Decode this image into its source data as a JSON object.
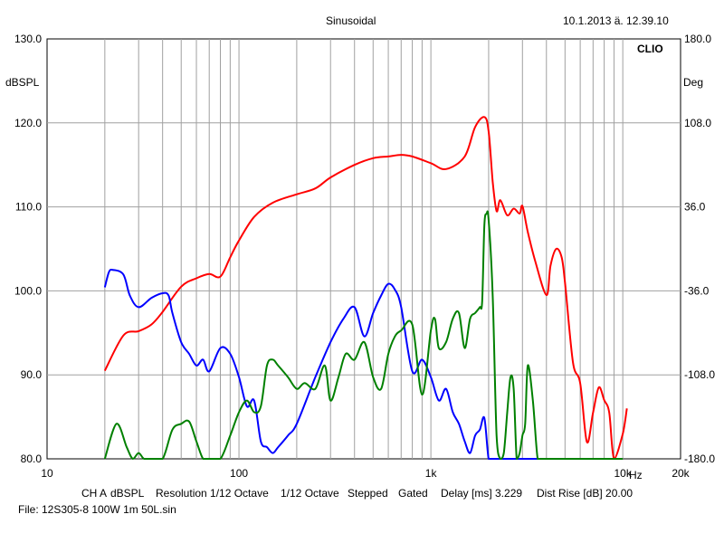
{
  "header": {
    "title": "Sinusoidal",
    "timestamp": "10.1.2013 ä. 12.39.10",
    "brand": "CLIO"
  },
  "footer": {
    "settings": [
      "CH A",
      "dBSPL",
      "Resolution 1/12 Octave",
      "1/12 Octave",
      "Stepped",
      "Gated",
      "Delay [ms] 3.229",
      "Dist Rise [dB] 20.00"
    ],
    "file": "File: 12S305-8 100W 1m 50L.sin"
  },
  "colors": {
    "grid": "#a0a0a0",
    "spl": "#ff0000",
    "phase_blue": "#0000ff",
    "phase_green": "#008000"
  },
  "chart_data": {
    "type": "line",
    "xscale": "log",
    "xlim": [
      10,
      20000
    ],
    "x_tick_labels": [
      {
        "value": 10,
        "label": "10"
      },
      {
        "value": 100,
        "label": "100"
      },
      {
        "value": 1000,
        "label": "1k"
      },
      {
        "value": 10000,
        "label": "10k"
      },
      {
        "value": 20000,
        "label": "20k"
      }
    ],
    "x_unit": "Hz",
    "ylabel_left": "dBSPL",
    "ylim_left": [
      80,
      130
    ],
    "y_ticks_left": [
      "80.0",
      "90.0",
      "100.0",
      "110.0",
      "120.0",
      "130.0"
    ],
    "ylabel_right": "Deg",
    "ylim_right": [
      -180,
      180
    ],
    "y_ticks_right": [
      "-180.0",
      "-108.0",
      "-36.0",
      "36.0",
      "108.0",
      "180.0"
    ],
    "grid": true,
    "series": [
      {
        "axis": "left",
        "color": "#ff0000",
        "x": [
          20,
          25,
          30,
          35,
          40,
          50,
          60,
          70,
          80,
          90,
          100,
          120,
          150,
          200,
          250,
          300,
          400,
          500,
          600,
          700,
          800,
          1000,
          1200,
          1500,
          1700,
          1900,
          2000,
          2100,
          2200,
          2300,
          2500,
          2700,
          2900,
          3000,
          3200,
          3500,
          4000,
          4200,
          4500,
          4800,
          5000,
          5500,
          6000,
          6500,
          7000,
          7500,
          8000,
          8500,
          9000,
          10000,
          10500
        ],
        "values": [
          90.5,
          94.7,
          95.2,
          96.0,
          97.5,
          100.5,
          101.5,
          102.0,
          101.7,
          104.0,
          106.0,
          108.8,
          110.5,
          111.5,
          112.2,
          113.5,
          115.0,
          115.8,
          116.0,
          116.2,
          116.0,
          115.2,
          114.5,
          116.0,
          119.5,
          120.7,
          119.0,
          113.0,
          109.5,
          110.8,
          109.0,
          109.8,
          109.2,
          110.1,
          107.0,
          103.5,
          99.5,
          103.0,
          105.0,
          104.0,
          101.0,
          91.5,
          89.0,
          82.0,
          85.5,
          88.5,
          87.0,
          85.5,
          80.0,
          83.0,
          86.0
        ]
      },
      {
        "axis": "right",
        "color": "#0000ff",
        "x": [
          20,
          21,
          22,
          25,
          27,
          30,
          35,
          40,
          43,
          45,
          50,
          55,
          60,
          65,
          70,
          80,
          90,
          100,
          110,
          120,
          130,
          140,
          150,
          160,
          180,
          200,
          250,
          300,
          350,
          400,
          450,
          500,
          550,
          600,
          650,
          700,
          800,
          900,
          1000,
          1100,
          1200,
          1300,
          1400,
          1500,
          1600,
          1700,
          1800,
          1900,
          2000,
          2100,
          2500,
          3000,
          4000,
          5000,
          7000,
          9000
        ],
        "values": [
          -33,
          -20,
          -18,
          -22,
          -40,
          -50,
          -42,
          -38,
          -40,
          -55,
          -80,
          -90,
          -100,
          -95,
          -105,
          -85,
          -90,
          -110,
          -135,
          -130,
          -165,
          -170,
          -175,
          -170,
          -160,
          -150,
          -110,
          -80,
          -60,
          -50,
          -75,
          -55,
          -40,
          -30,
          -35,
          -50,
          -105,
          -95,
          -110,
          -130,
          -120,
          -140,
          -150,
          -165,
          -175,
          -160,
          -155,
          -145,
          -180,
          -180,
          -180,
          -180,
          -180,
          -180,
          -180,
          -180
        ]
      },
      {
        "axis": "right",
        "color": "#008000",
        "x": [
          20,
          23,
          26,
          28,
          30,
          32,
          35,
          40,
          45,
          50,
          55,
          60,
          65,
          70,
          80,
          90,
          100,
          110,
          120,
          130,
          140,
          150,
          160,
          180,
          200,
          220,
          250,
          280,
          300,
          330,
          360,
          400,
          450,
          500,
          550,
          600,
          650,
          700,
          800,
          900,
          1000,
          1050,
          1100,
          1200,
          1300,
          1400,
          1500,
          1600,
          1700,
          1800,
          1850,
          1900,
          1950,
          2000,
          2100,
          2200,
          2300,
          2400,
          2500,
          2600,
          2700,
          2800,
          2900,
          3000,
          3100,
          3200,
          3400,
          3600,
          3800,
          4000,
          5000,
          6000,
          8000,
          10000
        ],
        "values": [
          -180,
          -150,
          -170,
          -180,
          -175,
          -180,
          -180,
          -180,
          -155,
          -150,
          -148,
          -165,
          -180,
          -180,
          -180,
          -160,
          -140,
          -130,
          -140,
          -135,
          -100,
          -95,
          -100,
          -110,
          -120,
          -115,
          -120,
          -100,
          -130,
          -110,
          -90,
          -95,
          -80,
          -110,
          -120,
          -90,
          -75,
          -70,
          -65,
          -125,
          -70,
          -60,
          -85,
          -80,
          -60,
          -55,
          -85,
          -60,
          -55,
          -50,
          -45,
          20,
          30,
          25,
          -40,
          -160,
          -180,
          -175,
          -140,
          -110,
          -120,
          -180,
          -175,
          -160,
          -150,
          -100,
          -130,
          -180,
          -180,
          -180,
          -180,
          -180,
          -180,
          -180
        ]
      }
    ]
  }
}
